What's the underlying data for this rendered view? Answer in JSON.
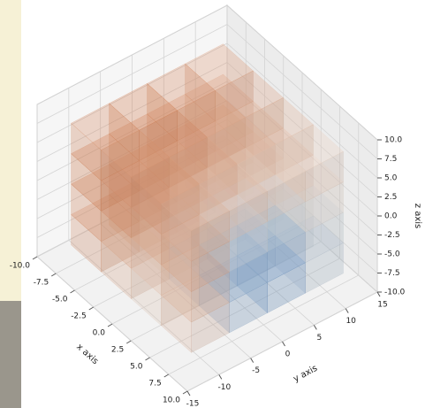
{
  "chart_data": {
    "type": "voxels",
    "x_label": "x axis",
    "y_label": "y axis",
    "z_label": "z axis",
    "xlim": [
      -10,
      10
    ],
    "ylim": [
      -15,
      15
    ],
    "zlim": [
      -10,
      10
    ],
    "xticks": [
      {
        "value": -10,
        "label": "-10.0"
      },
      {
        "value": -7.5,
        "label": "-7.5"
      },
      {
        "value": -5,
        "label": "-5.0"
      },
      {
        "value": -2.5,
        "label": "-2.5"
      },
      {
        "value": 0,
        "label": "0.0"
      },
      {
        "value": 2.5,
        "label": "2.5"
      },
      {
        "value": 5,
        "label": "5.0"
      },
      {
        "value": 7.5,
        "label": "7.5"
      },
      {
        "value": 10,
        "label": "10.0"
      }
    ],
    "yticks": [
      -15,
      -10,
      -5,
      0,
      5,
      10,
      15
    ],
    "zticks": [
      {
        "value": -10,
        "label": "-10.0"
      },
      {
        "value": -7.5,
        "label": "-7.5"
      },
      {
        "value": -5,
        "label": "-5.0"
      },
      {
        "value": -2.5,
        "label": "-2.5"
      },
      {
        "value": 0,
        "label": "0.0"
      },
      {
        "value": 2.5,
        "label": "2.5"
      },
      {
        "value": 5,
        "label": "5.0"
      },
      {
        "value": 7.5,
        "label": "7.5"
      },
      {
        "value": 10,
        "label": "10.0"
      }
    ],
    "x": [
      -6,
      -2,
      2,
      6
    ],
    "y": [
      -9,
      -3,
      3,
      9
    ],
    "z": [
      -6,
      -2,
      2,
      6
    ],
    "values": [
      [
        [
          0.6,
          0.7,
          0.8,
          0.7
        ],
        [
          0.5,
          0.6,
          0.7,
          0.8
        ],
        [
          0.3,
          0.5,
          0.6,
          0.7
        ],
        [
          0.2,
          0.4,
          0.5,
          0.6
        ]
      ],
      [
        [
          0.4,
          0.5,
          0.7,
          0.6
        ],
        [
          0.1,
          0.3,
          0.6,
          0.7
        ],
        [
          -0.1,
          0.2,
          0.5,
          0.6
        ],
        [
          0.0,
          0.3,
          0.4,
          0.5
        ]
      ],
      [
        [
          0.2,
          0.3,
          0.5,
          0.6
        ],
        [
          -0.4,
          -0.2,
          0.3,
          0.5
        ],
        [
          -0.5,
          -0.3,
          0.2,
          0.4
        ],
        [
          -0.2,
          0.0,
          0.3,
          0.4
        ]
      ],
      [
        [
          0.3,
          0.4,
          0.5,
          0.4
        ],
        [
          -0.6,
          -0.5,
          -0.1,
          0.3
        ],
        [
          -0.7,
          -0.6,
          -0.2,
          0.2
        ],
        [
          -0.3,
          -0.2,
          0.1,
          0.2
        ]
      ]
    ],
    "colors": [
      "#3f7fc8",
      "#f2ece6",
      "#c8602a"
    ],
    "grid": true
  }
}
